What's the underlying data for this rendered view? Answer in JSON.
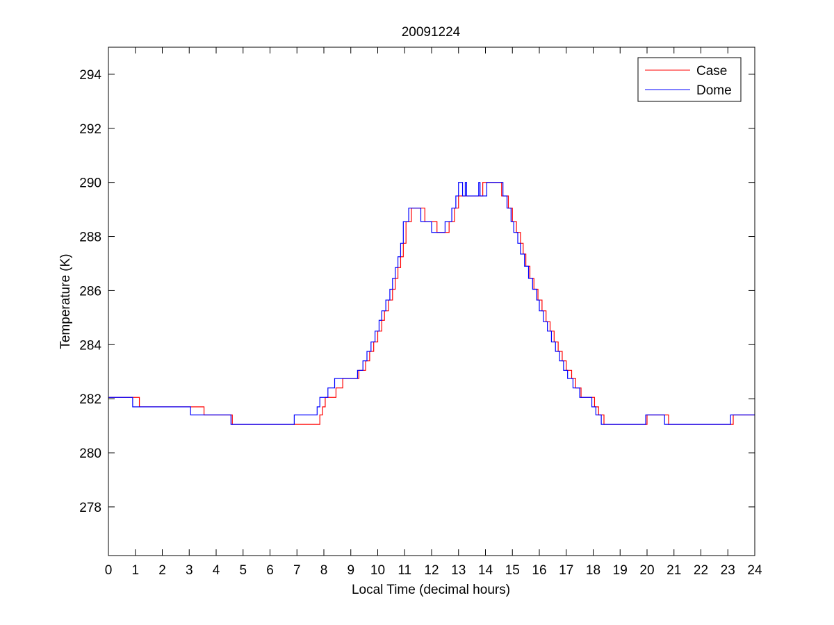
{
  "chart_data": {
    "type": "line",
    "title": "20091224",
    "xlabel": "Local Time (decimal hours)",
    "ylabel": "Temperature (K)",
    "xlim": [
      0,
      24
    ],
    "ylim": [
      276.2,
      295
    ],
    "xticks": [
      0,
      1,
      2,
      3,
      4,
      5,
      6,
      7,
      8,
      9,
      10,
      11,
      12,
      13,
      14,
      15,
      16,
      17,
      18,
      19,
      20,
      21,
      22,
      23,
      24
    ],
    "yticks": [
      278,
      280,
      282,
      284,
      286,
      288,
      290,
      292,
      294
    ],
    "grid": false,
    "legend_position": "top-right",
    "series": [
      {
        "name": "Case",
        "color": "#ff0000",
        "x": [
          0,
          0.9,
          1.15,
          3.1,
          3.55,
          4.6,
          6.95,
          7.85,
          7.95,
          8.05,
          8.2,
          8.45,
          8.7,
          8.95,
          9.3,
          9.55,
          9.7,
          9.85,
          10,
          10.15,
          10.25,
          10.4,
          10.55,
          10.65,
          10.75,
          10.85,
          10.95,
          11.05,
          11.25,
          11.75,
          12.2,
          12.65,
          12.85,
          13,
          13.1,
          13.3,
          13.9,
          14.2,
          14.6,
          14.85,
          15,
          15.15,
          15.3,
          15.4,
          15.5,
          15.65,
          15.8,
          15.95,
          16.1,
          16.25,
          16.4,
          16.55,
          16.7,
          16.85,
          17,
          17.2,
          17.35,
          17.55,
          17.85,
          18.05,
          18.2,
          18.4,
          18.75,
          20,
          20.2,
          20.8,
          21.3,
          23.1,
          23.2,
          24
        ],
        "y": [
          282.05,
          282.05,
          281.7,
          281.7,
          281.4,
          281.05,
          281.05,
          281.4,
          281.7,
          282.05,
          282.05,
          282.4,
          282.75,
          282.75,
          283.05,
          283.4,
          283.75,
          284.1,
          284.5,
          284.9,
          285.25,
          285.65,
          286.05,
          286.45,
          286.85,
          287.25,
          287.75,
          288.55,
          289.05,
          288.55,
          288.15,
          288.55,
          289.05,
          289.5,
          289.5,
          289.5,
          290,
          290,
          289.5,
          289.05,
          288.55,
          288.15,
          287.75,
          287.35,
          286.9,
          286.45,
          286.05,
          285.65,
          285.25,
          284.85,
          284.5,
          284.1,
          283.75,
          283.4,
          283.05,
          282.75,
          282.4,
          282.05,
          282.05,
          281.7,
          281.4,
          281.05,
          281.05,
          281.4,
          281.4,
          281.05,
          281.05,
          281.05,
          281.4,
          281.4
        ]
      },
      {
        "name": "Dome",
        "color": "#0000ff",
        "x": [
          0,
          0.9,
          3.05,
          3.15,
          4.55,
          4.6,
          6.9,
          7,
          7.75,
          7.85,
          7.95,
          8.15,
          8.4,
          8.7,
          9.25,
          9.45,
          9.6,
          9.75,
          9.9,
          10.05,
          10.15,
          10.3,
          10.45,
          10.55,
          10.65,
          10.75,
          10.85,
          10.95,
          11.15,
          11.6,
          12,
          12.5,
          12.75,
          12.9,
          13,
          13.15,
          13.25,
          13.3,
          13.35,
          13.7,
          13.75,
          13.8,
          14.05,
          14.45,
          14.65,
          14.8,
          14.95,
          15.05,
          15.2,
          15.3,
          15.45,
          15.6,
          15.75,
          15.9,
          16,
          16.15,
          16.3,
          16.45,
          16.6,
          16.75,
          16.9,
          17.05,
          17.25,
          17.5,
          17.75,
          17.95,
          18.1,
          18.3,
          18.65,
          19.95,
          20.65,
          21.1,
          23.05,
          23.1,
          23.15,
          24
        ],
        "y": [
          282.05,
          281.7,
          281.4,
          281.4,
          281.05,
          281.05,
          281.4,
          281.4,
          281.7,
          282.05,
          282.05,
          282.4,
          282.75,
          282.75,
          283.05,
          283.4,
          283.75,
          284.1,
          284.5,
          284.9,
          285.25,
          285.65,
          286.05,
          286.45,
          286.85,
          287.25,
          287.75,
          288.55,
          289.05,
          288.55,
          288.15,
          288.55,
          289.05,
          289.5,
          290,
          289.5,
          290,
          289.5,
          289.5,
          289.5,
          290,
          289.5,
          290,
          290,
          289.5,
          289.05,
          288.55,
          288.15,
          287.75,
          287.35,
          286.9,
          286.45,
          286.05,
          285.65,
          285.25,
          284.85,
          284.5,
          284.1,
          283.75,
          283.4,
          283.05,
          282.75,
          282.4,
          282.05,
          282.05,
          281.7,
          281.4,
          281.05,
          281.05,
          281.4,
          281.05,
          281.05,
          281.05,
          281.4,
          281.4,
          281.4
        ]
      }
    ]
  }
}
